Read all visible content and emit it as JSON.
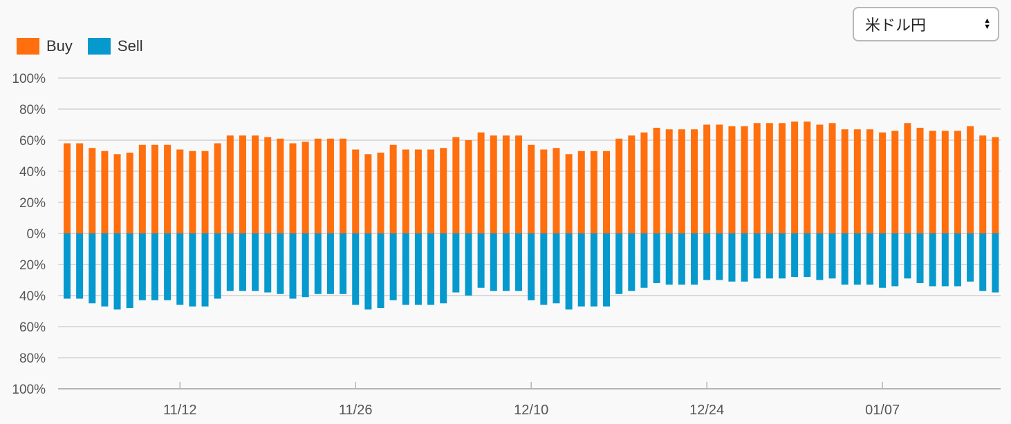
{
  "legend": {
    "items": [
      {
        "label": "Buy",
        "color": "#ff6f0e"
      },
      {
        "label": "Sell",
        "color": "#0599cd"
      }
    ]
  },
  "currency_select": {
    "selected": "米ドル円",
    "icon": "select-arrows-icon"
  },
  "chart_data": {
    "type": "bar",
    "title": "",
    "xlabel": "",
    "ylabel": "",
    "ylim": [
      -100,
      100
    ],
    "y_ticks": [
      "100%",
      "80%",
      "60%",
      "40%",
      "20%",
      "0%",
      "20%",
      "40%",
      "60%",
      "80%",
      "100%"
    ],
    "x_tick_labels": [
      {
        "label": "11/12",
        "index": 9
      },
      {
        "label": "11/26",
        "index": 23
      },
      {
        "label": "12/10",
        "index": 37
      },
      {
        "label": "12/24",
        "index": 51
      },
      {
        "label": "01/07",
        "index": 65
      }
    ],
    "grid": true,
    "legend_position": "top-left",
    "series": [
      {
        "name": "Buy",
        "color": "#ff6f0e",
        "values": [
          58,
          58,
          55,
          53,
          51,
          52,
          57,
          57,
          57,
          54,
          53,
          53,
          58,
          63,
          63,
          63,
          62,
          61,
          58,
          59,
          61,
          61,
          61,
          54,
          51,
          52,
          57,
          54,
          54,
          54,
          55,
          62,
          60,
          65,
          63,
          63,
          63,
          57,
          54,
          55,
          51,
          53,
          53,
          53,
          61,
          63,
          65,
          68,
          67,
          67,
          67,
          70,
          70,
          69,
          69,
          71,
          71,
          71,
          72,
          72,
          70,
          71,
          67,
          67,
          67,
          65,
          66,
          71,
          68,
          66,
          66,
          66,
          69,
          63,
          62
        ]
      },
      {
        "name": "Sell",
        "color": "#0599cd",
        "values": [
          42,
          42,
          45,
          47,
          49,
          48,
          43,
          43,
          43,
          46,
          47,
          47,
          42,
          37,
          37,
          37,
          38,
          39,
          42,
          41,
          39,
          39,
          39,
          46,
          49,
          48,
          43,
          46,
          46,
          46,
          45,
          38,
          40,
          35,
          37,
          37,
          37,
          43,
          46,
          45,
          49,
          47,
          47,
          47,
          39,
          37,
          35,
          32,
          33,
          33,
          33,
          30,
          30,
          31,
          31,
          29,
          29,
          29,
          28,
          28,
          30,
          29,
          33,
          33,
          33,
          35,
          34,
          29,
          32,
          34,
          34,
          34,
          31,
          37,
          38
        ]
      }
    ]
  }
}
